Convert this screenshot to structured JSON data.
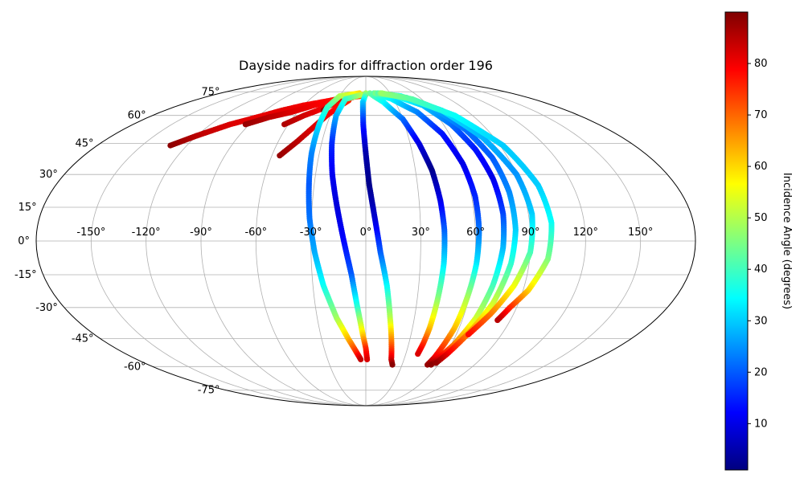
{
  "chart_data": {
    "type": "scatter",
    "projection": "mollweide",
    "title": "Dayside nadirs for diffraction order 196",
    "xlabel": "",
    "ylabel": "",
    "xlim": [
      -180,
      180
    ],
    "ylim": [
      -90,
      90
    ],
    "grid": true,
    "lon_ticks": [
      {
        "value": -150,
        "label": "-150°"
      },
      {
        "value": -120,
        "label": "-120°"
      },
      {
        "value": -90,
        "label": "-90°"
      },
      {
        "value": -60,
        "label": "-60°"
      },
      {
        "value": -30,
        "label": "-30°"
      },
      {
        "value": 0,
        "label": "0°"
      },
      {
        "value": 30,
        "label": "30°"
      },
      {
        "value": 60,
        "label": "60°"
      },
      {
        "value": 90,
        "label": "90°"
      },
      {
        "value": 120,
        "label": "120°"
      },
      {
        "value": 150,
        "label": "150°"
      }
    ],
    "lat_ticks": [
      {
        "value": 75,
        "label": "75°"
      },
      {
        "value": 60,
        "label": "60°"
      },
      {
        "value": 45,
        "label": "45°"
      },
      {
        "value": 30,
        "label": "30°"
      },
      {
        "value": 15,
        "label": "15°"
      },
      {
        "value": 0,
        "label": "0°"
      },
      {
        "value": -15,
        "label": "-15°"
      },
      {
        "value": -30,
        "label": "-30°"
      },
      {
        "value": -45,
        "label": "-45°"
      },
      {
        "value": -60,
        "label": "-60°"
      },
      {
        "value": -75,
        "label": "-75°"
      }
    ],
    "colorbar": {
      "label": "Incidence Angle (degrees)",
      "colormap": "jet",
      "range": [
        1,
        90
      ],
      "ticks": [
        {
          "value": 10,
          "label": "10"
        },
        {
          "value": 20,
          "label": "20"
        },
        {
          "value": 30,
          "label": "30"
        },
        {
          "value": 40,
          "label": "40"
        },
        {
          "value": 50,
          "label": "50"
        },
        {
          "value": 60,
          "label": "60"
        },
        {
          "value": 70,
          "label": "70"
        },
        {
          "value": 80,
          "label": "80"
        }
      ]
    },
    "tracks": [
      {
        "points": [
          [
            -131,
            44,
            89
          ],
          [
            -120,
            49,
            85
          ],
          [
            -105,
            55,
            82
          ],
          [
            -90,
            59,
            81
          ],
          [
            -75,
            63,
            81
          ],
          [
            -60,
            66,
            80
          ],
          [
            -45,
            68,
            79
          ],
          [
            -30,
            70,
            78
          ],
          [
            -15,
            72,
            74
          ],
          [
            0,
            73,
            70
          ]
        ]
      },
      {
        "points": [
          [
            -93,
            55,
            88
          ],
          [
            -80,
            59,
            85
          ],
          [
            -65,
            62,
            82
          ],
          [
            -50,
            66,
            80
          ],
          [
            -35,
            69,
            78
          ],
          [
            -20,
            71,
            76
          ],
          [
            -5,
            72,
            72
          ]
        ]
      },
      {
        "points": [
          [
            -63,
            55,
            86
          ],
          [
            -52,
            60,
            83
          ],
          [
            -40,
            64,
            80
          ],
          [
            -28,
            68,
            78
          ],
          [
            -15,
            71,
            75
          ]
        ]
      },
      {
        "points": [
          [
            -55,
            39,
            88
          ],
          [
            -47,
            46,
            85
          ],
          [
            -40,
            53,
            82
          ],
          [
            -33,
            60,
            80
          ],
          [
            -26,
            65,
            78
          ],
          [
            -18,
            69,
            76
          ]
        ]
      },
      {
        "points": [
          [
            -38,
            63,
            89
          ],
          [
            -32,
            69,
            84
          ],
          [
            -24,
            72,
            80
          ]
        ]
      },
      {
        "points": [
          [
            -8,
            74,
            60
          ],
          [
            -30,
            72,
            50
          ],
          [
            -36,
            65,
            40
          ],
          [
            -36,
            55,
            32
          ],
          [
            -35,
            40,
            24
          ],
          [
            -33,
            25,
            20
          ],
          [
            -31,
            10,
            22
          ],
          [
            -28,
            -5,
            27
          ],
          [
            -24,
            -20,
            35
          ],
          [
            -18,
            -35,
            48
          ],
          [
            -12,
            -45,
            62
          ],
          [
            -7,
            -52,
            75
          ],
          [
            -4,
            -56,
            84
          ]
        ]
      },
      {
        "points": [
          [
            -5,
            73,
            52
          ],
          [
            -22,
            70,
            40
          ],
          [
            -25,
            60,
            28
          ],
          [
            -23,
            45,
            16
          ],
          [
            -20,
            30,
            11
          ],
          [
            -16,
            15,
            9
          ],
          [
            -12,
            0,
            12
          ],
          [
            -8,
            -15,
            20
          ],
          [
            -5,
            -30,
            38
          ],
          [
            -2,
            -43,
            60
          ],
          [
            0,
            -50,
            75
          ],
          [
            1,
            -56,
            82
          ]
        ]
      },
      {
        "points": [
          [
            0,
            74,
            48
          ],
          [
            -3,
            68,
            30
          ],
          [
            -2,
            55,
            15
          ],
          [
            0,
            40,
            5
          ],
          [
            2,
            25,
            2
          ],
          [
            5,
            10,
            8
          ],
          [
            8,
            -5,
            20
          ],
          [
            12,
            -20,
            34
          ],
          [
            15,
            -35,
            50
          ],
          [
            18,
            -48,
            70
          ],
          [
            20,
            -56,
            82
          ],
          [
            22,
            -59,
            89
          ]
        ]
      },
      {
        "points": [
          [
            5,
            74,
            44
          ],
          [
            18,
            68,
            35
          ],
          [
            30,
            58,
            22
          ],
          [
            36,
            45,
            10
          ],
          [
            40,
            32,
            2
          ],
          [
            42,
            18,
            10
          ],
          [
            43,
            5,
            20
          ],
          [
            43,
            -10,
            32
          ],
          [
            42,
            -25,
            45
          ],
          [
            41,
            -40,
            62
          ],
          [
            40,
            -48,
            75
          ],
          [
            39,
            -53,
            82
          ]
        ]
      },
      {
        "points": [
          [
            10,
            74,
            42
          ],
          [
            28,
            70,
            34
          ],
          [
            45,
            62,
            24
          ],
          [
            55,
            50,
            14
          ],
          [
            60,
            35,
            10
          ],
          [
            62,
            20,
            15
          ],
          [
            62,
            5,
            22
          ],
          [
            61,
            -10,
            32
          ],
          [
            59,
            -25,
            48
          ],
          [
            57,
            -40,
            62
          ],
          [
            53,
            -55,
            80
          ],
          [
            51,
            -59,
            88
          ]
        ]
      },
      {
        "points": [
          [
            12,
            74,
            45
          ],
          [
            35,
            72,
            38
          ],
          [
            55,
            66,
            30
          ],
          [
            66,
            55,
            22
          ],
          [
            72,
            42,
            14
          ],
          [
            75,
            28,
            10
          ],
          [
            76,
            12,
            18
          ],
          [
            75,
            -3,
            28
          ],
          [
            72,
            -20,
            40
          ],
          [
            68,
            -35,
            52
          ],
          [
            62,
            -48,
            68
          ],
          [
            56,
            -56,
            82
          ],
          [
            54,
            -59,
            89
          ]
        ]
      },
      {
        "points": [
          [
            15,
            74,
            42
          ],
          [
            40,
            72,
            35
          ],
          [
            62,
            65,
            28
          ],
          [
            74,
            52,
            22
          ],
          [
            80,
            38,
            20
          ],
          [
            82,
            22,
            24
          ],
          [
            82,
            5,
            30
          ],
          [
            80,
            -10,
            38
          ],
          [
            75,
            -28,
            52
          ],
          [
            68,
            -42,
            66
          ],
          [
            61,
            -53,
            80
          ],
          [
            57,
            -58,
            88
          ]
        ]
      },
      {
        "points": [
          [
            18,
            74,
            46
          ],
          [
            45,
            71,
            40
          ],
          [
            68,
            63,
            32
          ],
          [
            82,
            48,
            28
          ],
          [
            90,
            30,
            25
          ],
          [
            92,
            12,
            30
          ],
          [
            90,
            -5,
            40
          ],
          [
            84,
            -20,
            55
          ],
          [
            76,
            -33,
            68
          ],
          [
            68,
            -43,
            78
          ]
        ]
      },
      {
        "points": [
          [
            20,
            74,
            48
          ],
          [
            50,
            70,
            42
          ],
          [
            75,
            60,
            35
          ],
          [
            92,
            44,
            30
          ],
          [
            100,
            25,
            30
          ],
          [
            102,
            8,
            35
          ],
          [
            100,
            -8,
            45
          ],
          [
            93,
            -22,
            60
          ],
          [
            86,
            -30,
            75
          ],
          [
            82,
            -36,
            85
          ]
        ]
      }
    ]
  }
}
